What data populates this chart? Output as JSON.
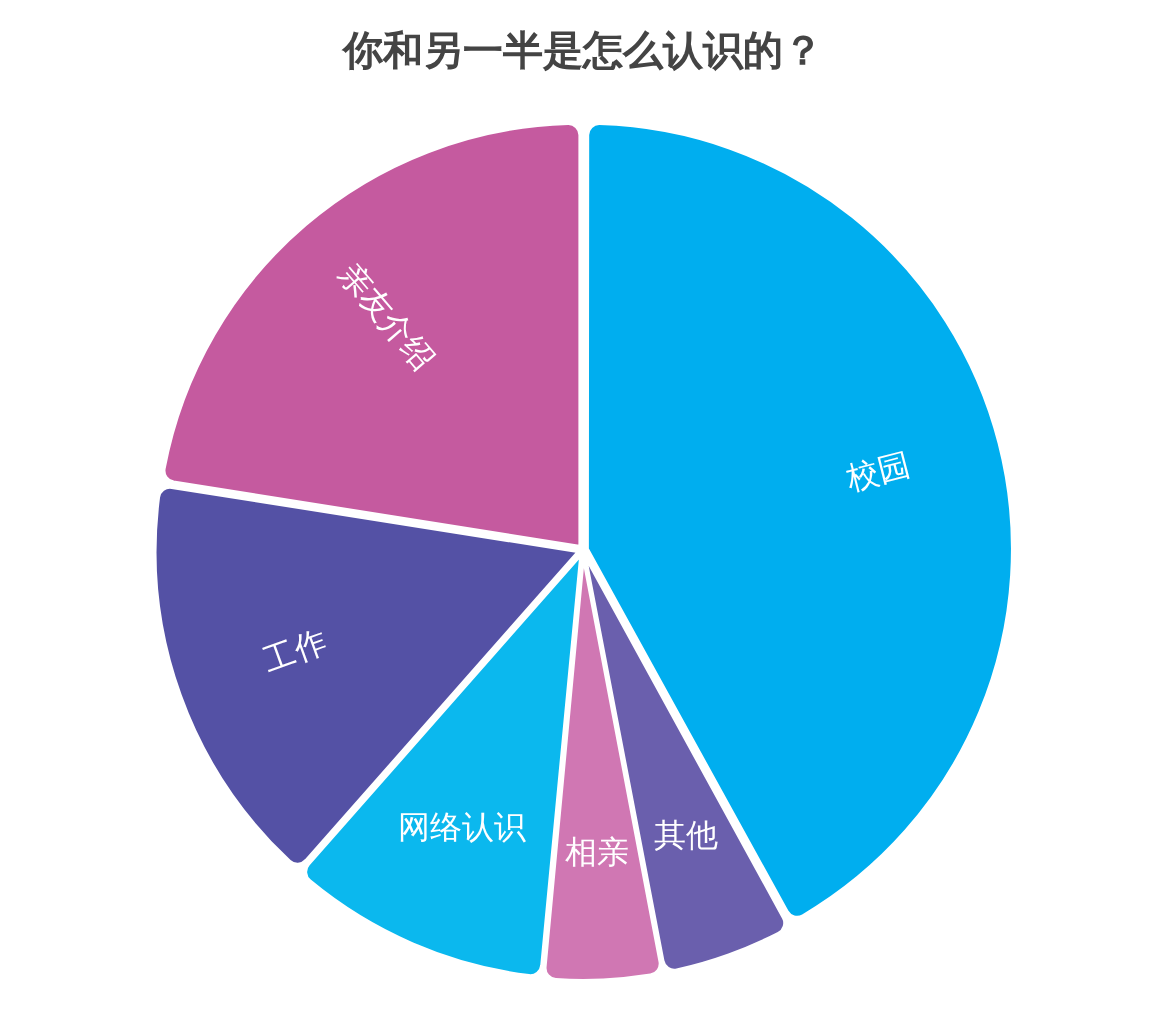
{
  "chart_data": {
    "type": "pie",
    "title": "你和另一半是怎么认识的？",
    "categories": [
      "校园",
      "其他",
      "相亲",
      "网络认识",
      "工作",
      "亲友介绍"
    ],
    "values": [
      42,
      5,
      4.5,
      10,
      16,
      22.5
    ],
    "colors": [
      "#00aeef",
      "#6a5fad",
      "#d077b3",
      "#0bb8ee",
      "#5451a5",
      "#c55a9f"
    ],
    "legend": false,
    "data_labels": false
  }
}
